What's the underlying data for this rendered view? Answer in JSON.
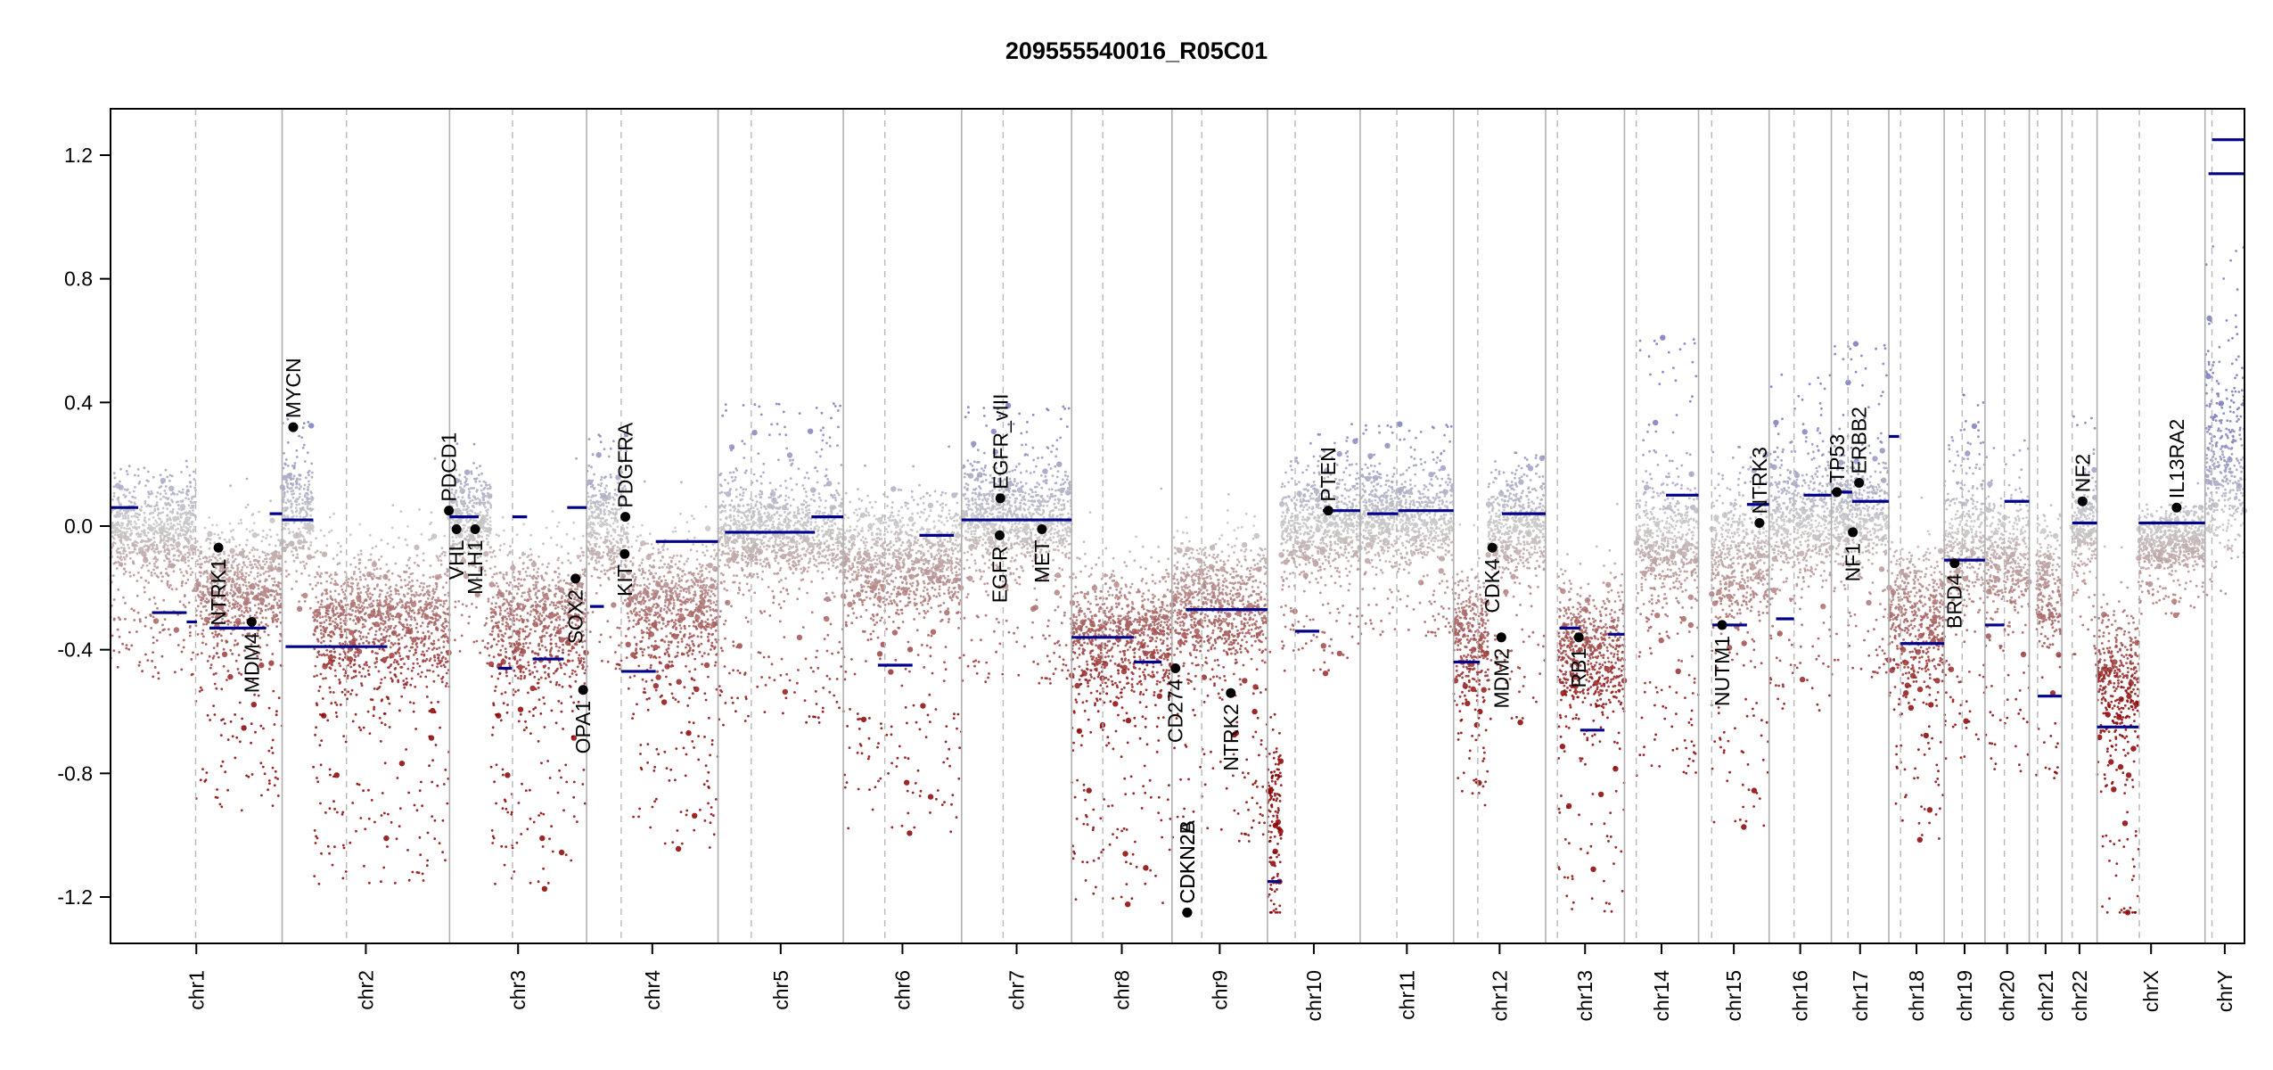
{
  "chart_data": {
    "type": "scatter",
    "title": "209555540016_R05C01",
    "xlabel": "",
    "ylabel": "",
    "ylim": [
      -1.35,
      1.35
    ],
    "y_ticks": [
      -1.2,
      -0.8,
      -0.4,
      0.0,
      0.4,
      0.8,
      1.2
    ],
    "y_tick_labels": [
      "-1.2",
      "-0.8",
      "-0.4",
      "0.0",
      "0.4",
      "0.8",
      "1.2"
    ],
    "colors": {
      "gain": "#8c8cc0",
      "neutral": "#c8c8c8",
      "loss": "#8b0000",
      "segment": "#00008b",
      "label_dot": "#000000"
    },
    "chromosomes": [
      {
        "name": "chr1",
        "label": "chr1",
        "length": 248,
        "centromere": 123
      },
      {
        "name": "chr2",
        "label": "chr2",
        "length": 242,
        "centromere": 93
      },
      {
        "name": "chr3",
        "label": "chr3",
        "length": 198,
        "centromere": 91
      },
      {
        "name": "chr4",
        "label": "chr4",
        "length": 190,
        "centromere": 50
      },
      {
        "name": "chr5",
        "label": "chr5",
        "length": 181,
        "centromere": 48
      },
      {
        "name": "chr6",
        "label": "chr6",
        "length": 171,
        "centromere": 60
      },
      {
        "name": "chr7",
        "label": "chr7",
        "length": 159,
        "centromere": 60
      },
      {
        "name": "chr8",
        "label": "chr8",
        "length": 145,
        "centromere": 45
      },
      {
        "name": "chr9",
        "label": "chr9",
        "length": 138,
        "centromere": 43
      },
      {
        "name": "chr10",
        "label": "chr10",
        "length": 134,
        "centromere": 40
      },
      {
        "name": "chr11",
        "label": "chr11",
        "length": 135,
        "centromere": 53
      },
      {
        "name": "chr12",
        "label": "chr12",
        "length": 133,
        "centromere": 35
      },
      {
        "name": "chr13",
        "label": "chr13",
        "length": 114,
        "centromere": 17
      },
      {
        "name": "chr14",
        "label": "chr14",
        "length": 107,
        "centromere": 17
      },
      {
        "name": "chr15",
        "label": "chr15",
        "length": 102,
        "centromere": 19
      },
      {
        "name": "chr16",
        "label": "chr16",
        "length": 90,
        "centromere": 36
      },
      {
        "name": "chr17",
        "label": "chr17",
        "length": 83,
        "centromere": 24
      },
      {
        "name": "chr18",
        "label": "chr18",
        "length": 80,
        "centromere": 17
      },
      {
        "name": "chr19",
        "label": "chr19",
        "length": 59,
        "centromere": 26
      },
      {
        "name": "chr20",
        "label": "chr20",
        "length": 64,
        "centromere": 28
      },
      {
        "name": "chr21",
        "label": "chr21",
        "length": 47,
        "centromere": 12
      },
      {
        "name": "chr22",
        "label": "chr22",
        "length": 51,
        "centromere": 15
      },
      {
        "name": "chrX",
        "label": "chrX",
        "length": 156,
        "centromere": 61
      },
      {
        "name": "chrY",
        "label": "chrY",
        "length": 57,
        "centromere": 10
      }
    ],
    "segments": [
      {
        "chrom": "chr1",
        "start": 0,
        "end": 40,
        "value": 0.06
      },
      {
        "chrom": "chr1",
        "start": 60,
        "end": 110,
        "value": -0.28
      },
      {
        "chrom": "chr1",
        "start": 110,
        "end": 125,
        "value": -0.31
      },
      {
        "chrom": "chr1",
        "start": 143,
        "end": 225,
        "value": -0.33
      },
      {
        "chrom": "chr1",
        "start": 230,
        "end": 248,
        "value": 0.04
      },
      {
        "chrom": "chr2",
        "start": 0,
        "end": 45,
        "value": 0.02
      },
      {
        "chrom": "chr2",
        "start": 5,
        "end": 152,
        "value": -0.39
      },
      {
        "chrom": "chr3",
        "start": 0,
        "end": 42,
        "value": 0.03
      },
      {
        "chrom": "chr3",
        "start": 70,
        "end": 90,
        "value": -0.46
      },
      {
        "chrom": "chr3",
        "start": 91,
        "end": 112,
        "value": 0.03
      },
      {
        "chrom": "chr3",
        "start": 120,
        "end": 165,
        "value": -0.43
      },
      {
        "chrom": "chr3",
        "start": 170,
        "end": 198,
        "value": 0.06
      },
      {
        "chrom": "chr4",
        "start": 5,
        "end": 25,
        "value": -0.26
      },
      {
        "chrom": "chr4",
        "start": 50,
        "end": 100,
        "value": -0.47
      },
      {
        "chrom": "chr4",
        "start": 100,
        "end": 190,
        "value": -0.05
      },
      {
        "chrom": "chr5",
        "start": 10,
        "end": 140,
        "value": -0.02
      },
      {
        "chrom": "chr5",
        "start": 135,
        "end": 181,
        "value": 0.03
      },
      {
        "chrom": "chr6",
        "start": 50,
        "end": 100,
        "value": -0.45
      },
      {
        "chrom": "chr6",
        "start": 110,
        "end": 160,
        "value": -0.03
      },
      {
        "chrom": "chr7",
        "start": 0,
        "end": 159,
        "value": 0.02
      },
      {
        "chrom": "chr8",
        "start": 0,
        "end": 90,
        "value": -0.36
      },
      {
        "chrom": "chr8",
        "start": 90,
        "end": 130,
        "value": -0.44
      },
      {
        "chrom": "chr9",
        "start": 20,
        "end": 138,
        "value": -0.27
      },
      {
        "chrom": "chr10",
        "start": 0,
        "end": 20,
        "value": -1.15
      },
      {
        "chrom": "chr10",
        "start": 40,
        "end": 75,
        "value": -0.34
      },
      {
        "chrom": "chr10",
        "start": 80,
        "end": 134,
        "value": 0.05
      },
      {
        "chrom": "chr11",
        "start": 10,
        "end": 55,
        "value": 0.04
      },
      {
        "chrom": "chr11",
        "start": 55,
        "end": 135,
        "value": 0.05
      },
      {
        "chrom": "chr12",
        "start": 0,
        "end": 38,
        "value": -0.44
      },
      {
        "chrom": "chr12",
        "start": 70,
        "end": 133,
        "value": 0.04
      },
      {
        "chrom": "chr13",
        "start": 20,
        "end": 50,
        "value": -0.33
      },
      {
        "chrom": "chr13",
        "start": 50,
        "end": 85,
        "value": -0.66
      },
      {
        "chrom": "chr13",
        "start": 90,
        "end": 114,
        "value": -0.35
      },
      {
        "chrom": "chr14",
        "start": 60,
        "end": 107,
        "value": 0.1
      },
      {
        "chrom": "chr15",
        "start": 20,
        "end": 70,
        "value": -0.32
      },
      {
        "chrom": "chr15",
        "start": 70,
        "end": 102,
        "value": 0.07
      },
      {
        "chrom": "chr16",
        "start": 10,
        "end": 36,
        "value": -0.3
      },
      {
        "chrom": "chr16",
        "start": 50,
        "end": 90,
        "value": 0.1
      },
      {
        "chrom": "chr17",
        "start": 0,
        "end": 30,
        "value": 0.11
      },
      {
        "chrom": "chr17",
        "start": 30,
        "end": 83,
        "value": 0.08
      },
      {
        "chrom": "chr18",
        "start": 0,
        "end": 15,
        "value": 0.29
      },
      {
        "chrom": "chr18",
        "start": 17,
        "end": 80,
        "value": -0.38
      },
      {
        "chrom": "chr19",
        "start": 0,
        "end": 59,
        "value": -0.11
      },
      {
        "chrom": "chr20",
        "start": 0,
        "end": 28,
        "value": -0.32
      },
      {
        "chrom": "chr20",
        "start": 28,
        "end": 64,
        "value": 0.08
      },
      {
        "chrom": "chr21",
        "start": 12,
        "end": 47,
        "value": -0.55
      },
      {
        "chrom": "chr22",
        "start": 15,
        "end": 51,
        "value": 0.01
      },
      {
        "chrom": "chrX",
        "start": 0,
        "end": 60,
        "value": -0.65
      },
      {
        "chrom": "chrX",
        "start": 60,
        "end": 156,
        "value": 0.01
      },
      {
        "chrom": "chrY",
        "start": 5,
        "end": 57,
        "value": 1.14
      },
      {
        "chrom": "chrY",
        "start": 10,
        "end": 57,
        "value": 1.25
      }
    ],
    "genes": [
      {
        "name": "NTRK1",
        "chrom": "chr1",
        "pos": 156,
        "value": -0.07,
        "side": "below"
      },
      {
        "name": "MDM4",
        "chrom": "chr1",
        "pos": 204,
        "value": -0.31,
        "side": "below"
      },
      {
        "name": "MYCN",
        "chrom": "chr2",
        "pos": 16,
        "value": 0.32,
        "side": "above"
      },
      {
        "name": "PDCD1",
        "chrom": "chr2",
        "pos": 241,
        "value": 0.05,
        "side": "above"
      },
      {
        "name": "VHL",
        "chrom": "chr3",
        "pos": 10,
        "value": -0.01,
        "side": "below"
      },
      {
        "name": "MLH1",
        "chrom": "chr3",
        "pos": 37,
        "value": -0.01,
        "side": "below"
      },
      {
        "name": "SOX2",
        "chrom": "chr3",
        "pos": 182,
        "value": -0.17,
        "side": "below"
      },
      {
        "name": "OPA1",
        "chrom": "chr3",
        "pos": 193,
        "value": -0.53,
        "side": "below"
      },
      {
        "name": "KIT",
        "chrom": "chr4",
        "pos": 55,
        "value": -0.09,
        "side": "below"
      },
      {
        "name": "PDGFRA",
        "chrom": "chr4",
        "pos": 56,
        "value": 0.03,
        "side": "above"
      },
      {
        "name": "EGFR",
        "chrom": "chr7",
        "pos": 55,
        "value": -0.03,
        "side": "below"
      },
      {
        "name": "EGFR_vIII",
        "chrom": "chr7",
        "pos": 56,
        "value": 0.09,
        "side": "above"
      },
      {
        "name": "MET",
        "chrom": "chr7",
        "pos": 116,
        "value": -0.01,
        "side": "below"
      },
      {
        "name": "CD274",
        "chrom": "chr9",
        "pos": 5,
        "value": -0.46,
        "side": "below"
      },
      {
        "name": "CDKN2B",
        "chrom": "chr9",
        "pos": 22,
        "value": -1.25,
        "side": "above"
      },
      {
        "name": "CDKN2A",
        "chrom": "chr9",
        "pos": 22,
        "value": -1.25,
        "side": "above"
      },
      {
        "name": "NTRK2",
        "chrom": "chr9",
        "pos": 85,
        "value": -0.54,
        "side": "below"
      },
      {
        "name": "PTEN",
        "chrom": "chr10",
        "pos": 88,
        "value": 0.05,
        "side": "above"
      },
      {
        "name": "CDK4",
        "chrom": "chr12",
        "pos": 56,
        "value": -0.07,
        "side": "below"
      },
      {
        "name": "MDM2",
        "chrom": "chr12",
        "pos": 69,
        "value": -0.36,
        "side": "below"
      },
      {
        "name": "RB1",
        "chrom": "chr13",
        "pos": 48,
        "value": -0.36,
        "side": "below"
      },
      {
        "name": "NUTM1",
        "chrom": "chr15",
        "pos": 34,
        "value": -0.32,
        "side": "below"
      },
      {
        "name": "NTRK3",
        "chrom": "chr15",
        "pos": 88,
        "value": 0.01,
        "side": "above"
      },
      {
        "name": "TP53",
        "chrom": "chr17",
        "pos": 8,
        "value": 0.11,
        "side": "above"
      },
      {
        "name": "NF1",
        "chrom": "chr17",
        "pos": 31,
        "value": -0.02,
        "side": "below"
      },
      {
        "name": "ERBB2",
        "chrom": "chr17",
        "pos": 40,
        "value": 0.14,
        "side": "above"
      },
      {
        "name": "BRD4",
        "chrom": "chr19",
        "pos": 15,
        "value": -0.12,
        "side": "below"
      },
      {
        "name": "NF2",
        "chrom": "chr22",
        "pos": 30,
        "value": 0.08,
        "side": "above"
      },
      {
        "name": "IL13RA2",
        "chrom": "chrX",
        "pos": 115,
        "value": 0.06,
        "side": "above"
      }
    ],
    "scatter_points": [
      {
        "chrom": "chr1",
        "start": 0,
        "end": 123,
        "mean": -0.02,
        "spread": 0.14,
        "gain_tail": 0.18,
        "loss_tail": 0.3
      },
      {
        "chrom": "chr1",
        "start": 123,
        "end": 248,
        "mean": -0.2,
        "spread": 0.18,
        "gain_tail": 0.1,
        "loss_tail": 0.45
      },
      {
        "chrom": "chr2",
        "start": 0,
        "end": 45,
        "mean": 0.05,
        "spread": 0.15,
        "gain_tail": 0.25,
        "loss_tail": 0.2
      },
      {
        "chrom": "chr2",
        "start": 45,
        "end": 242,
        "mean": -0.3,
        "spread": 0.22,
        "gain_tail": 0.05,
        "loss_tail": 0.55
      },
      {
        "chrom": "chr3",
        "start": 0,
        "end": 60,
        "mean": 0.03,
        "spread": 0.12,
        "gain_tail": 0.12,
        "loss_tail": 0.3
      },
      {
        "chrom": "chr3",
        "start": 60,
        "end": 198,
        "mean": -0.3,
        "spread": 0.22,
        "gain_tail": 0.1,
        "loss_tail": 0.55
      },
      {
        "chrom": "chr4",
        "start": 0,
        "end": 60,
        "mean": 0.0,
        "spread": 0.15,
        "gain_tail": 0.25,
        "loss_tail": 0.3
      },
      {
        "chrom": "chr4",
        "start": 60,
        "end": 190,
        "mean": -0.25,
        "spread": 0.2,
        "gain_tail": 0.05,
        "loss_tail": 0.5
      },
      {
        "chrom": "chr5",
        "start": 0,
        "end": 181,
        "mean": -0.02,
        "spread": 0.13,
        "gain_tail": 0.35,
        "loss_tail": 0.4
      },
      {
        "chrom": "chr6",
        "start": 0,
        "end": 171,
        "mean": -0.12,
        "spread": 0.16,
        "gain_tail": 0.2,
        "loss_tail": 0.55
      },
      {
        "chrom": "chr7",
        "start": 0,
        "end": 159,
        "mean": 0.03,
        "spread": 0.14,
        "gain_tail": 0.3,
        "loss_tail": 0.35
      },
      {
        "chrom": "chr8",
        "start": 0,
        "end": 145,
        "mean": -0.35,
        "spread": 0.2,
        "gain_tail": 0.05,
        "loss_tail": 0.55
      },
      {
        "chrom": "chr9",
        "start": 0,
        "end": 138,
        "mean": -0.25,
        "spread": 0.18,
        "gain_tail": 0.15,
        "loss_tail": 0.5
      },
      {
        "chrom": "chr10",
        "start": 0,
        "end": 20,
        "mean": -0.9,
        "spread": 0.25,
        "gain_tail": 0.1,
        "loss_tail": 0.3
      },
      {
        "chrom": "chr10",
        "start": 20,
        "end": 134,
        "mean": 0.0,
        "spread": 0.14,
        "gain_tail": 0.25,
        "loss_tail": 0.3
      },
      {
        "chrom": "chr11",
        "start": 0,
        "end": 135,
        "mean": 0.03,
        "spread": 0.13,
        "gain_tail": 0.25,
        "loss_tail": 0.25
      },
      {
        "chrom": "chr12",
        "start": 0,
        "end": 50,
        "mean": -0.35,
        "spread": 0.18,
        "gain_tail": 0.1,
        "loss_tail": 0.35
      },
      {
        "chrom": "chr12",
        "start": 50,
        "end": 133,
        "mean": 0.0,
        "spread": 0.14,
        "gain_tail": 0.2,
        "loss_tail": 0.4
      },
      {
        "chrom": "chr13",
        "start": 17,
        "end": 114,
        "mean": -0.4,
        "spread": 0.2,
        "gain_tail": 0.1,
        "loss_tail": 0.55
      },
      {
        "chrom": "chr14",
        "start": 17,
        "end": 107,
        "mean": -0.05,
        "spread": 0.18,
        "gain_tail": 0.55,
        "loss_tail": 0.5
      },
      {
        "chrom": "chr15",
        "start": 19,
        "end": 102,
        "mean": -0.1,
        "spread": 0.18,
        "gain_tail": 0.3,
        "loss_tail": 0.55
      },
      {
        "chrom": "chr16",
        "start": 0,
        "end": 90,
        "mean": 0.02,
        "spread": 0.18,
        "gain_tail": 0.4,
        "loss_tail": 0.4
      },
      {
        "chrom": "chr17",
        "start": 0,
        "end": 83,
        "mean": 0.05,
        "spread": 0.16,
        "gain_tail": 0.45,
        "loss_tail": 0.35
      },
      {
        "chrom": "chr18",
        "start": 0,
        "end": 80,
        "mean": -0.3,
        "spread": 0.2,
        "gain_tail": 0.2,
        "loss_tail": 0.45
      },
      {
        "chrom": "chr19",
        "start": 0,
        "end": 59,
        "mean": -0.05,
        "spread": 0.2,
        "gain_tail": 0.4,
        "loss_tail": 0.45
      },
      {
        "chrom": "chr20",
        "start": 0,
        "end": 64,
        "mean": -0.1,
        "spread": 0.16,
        "gain_tail": 0.3,
        "loss_tail": 0.45
      },
      {
        "chrom": "chr21",
        "start": 10,
        "end": 47,
        "mean": -0.2,
        "spread": 0.16,
        "gain_tail": 0.2,
        "loss_tail": 0.4
      },
      {
        "chrom": "chr22",
        "start": 15,
        "end": 51,
        "mean": 0.0,
        "spread": 0.15,
        "gain_tail": 0.3,
        "loss_tail": 0.3
      },
      {
        "chrom": "chrX",
        "start": 0,
        "end": 60,
        "mean": -0.5,
        "spread": 0.22,
        "gain_tail": 0.05,
        "loss_tail": 0.55
      },
      {
        "chrom": "chrX",
        "start": 60,
        "end": 156,
        "mean": -0.05,
        "spread": 0.08,
        "gain_tail": 0.1,
        "loss_tail": 0.15
      },
      {
        "chrom": "chrY",
        "start": 0,
        "end": 57,
        "mean": 0.2,
        "spread": 0.3,
        "gain_tail": 0.6,
        "loss_tail": 0.1
      }
    ]
  }
}
